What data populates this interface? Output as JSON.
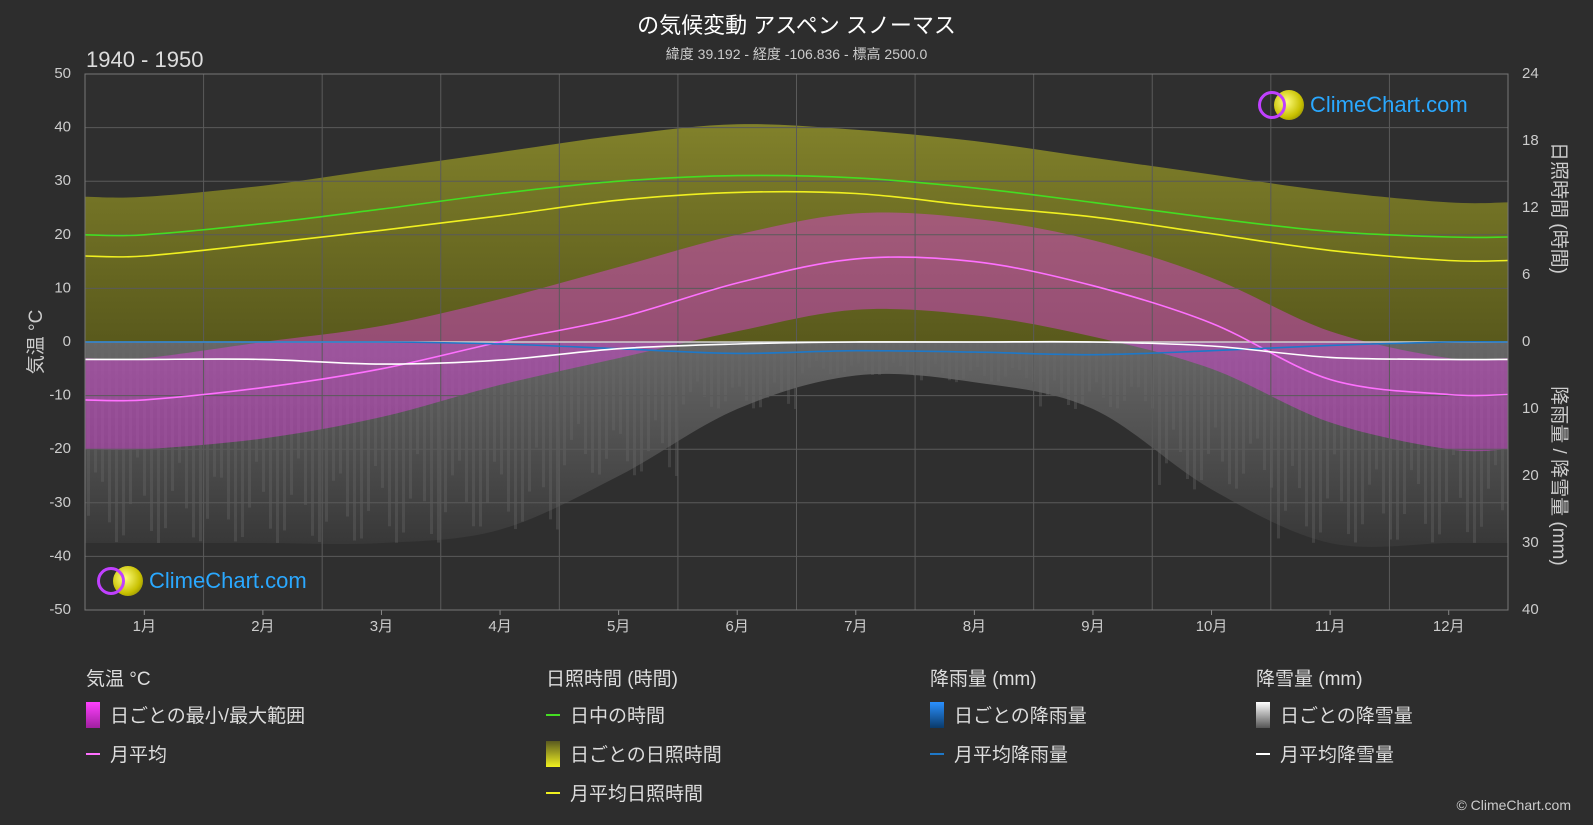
{
  "title": "の気候変動 アスペン スノーマス",
  "subtitle": "緯度 39.192 - 経度 -106.836 - 標高 2500.0",
  "period": "1940 - 1950",
  "logo_text": "ClimeChart.com",
  "copyright": "© ClimeChart.com",
  "colors": {
    "background": "#2d2d2d",
    "daylight": "#44dd22",
    "sunshine_line": "#f0f020",
    "sunshine_fill": "#8c8c1e",
    "temp_fill": "#e040e0",
    "temp_line": "#ff70ff",
    "rain": "#1e78c8",
    "snow": "#ffffff",
    "grid": "#555555"
  },
  "legend": {
    "temperature": {
      "header": "気温 °C",
      "items": [
        "日ごとの最小/最大範囲",
        "月平均"
      ]
    },
    "sunshine": {
      "header": "日照時間 (時間)",
      "items": [
        "日中の時間",
        "日ごとの日照時間",
        "月平均日照時間"
      ]
    },
    "rain": {
      "header": "降雨量 (mm)",
      "items": [
        "日ごとの降雨量",
        "月平均降雨量"
      ]
    },
    "snow": {
      "header": "降雪量 (mm)",
      "items": [
        "日ごとの降雪量",
        "月平均降雪量"
      ]
    }
  },
  "chart_data": {
    "type": "line",
    "categories": [
      "1月",
      "2月",
      "3月",
      "4月",
      "5月",
      "6月",
      "7月",
      "8月",
      "9月",
      "10月",
      "11月",
      "12月"
    ],
    "y_left": {
      "label": "気温 °C",
      "ylim": [
        -50,
        50
      ],
      "ticks": [
        50,
        40,
        30,
        20,
        10,
        0,
        -10,
        -20,
        -30,
        -40,
        -50
      ]
    },
    "y_right_top": {
      "label": "日照時間 (時間)",
      "ylim": [
        0,
        24
      ],
      "ticks": [
        24,
        18,
        12,
        6,
        0
      ]
    },
    "y_right_bottom": {
      "label": "降雨量 / 降雪量 (mm)",
      "ylim": [
        0,
        40
      ],
      "ticks": [
        0,
        10,
        20,
        30,
        40
      ]
    },
    "grid": true,
    "series": [
      {
        "name": "日中の時間",
        "axis": "sunshine",
        "values": [
          9.6,
          10.6,
          11.9,
          13.3,
          14.4,
          14.9,
          14.7,
          13.8,
          12.5,
          11.1,
          9.9,
          9.4
        ]
      },
      {
        "name": "月平均日照時間",
        "axis": "sunshine",
        "values": [
          7.7,
          8.8,
          10.0,
          11.3,
          12.7,
          13.4,
          13.3,
          12.2,
          11.2,
          9.7,
          8.2,
          7.3
        ]
      },
      {
        "name": "月平均",
        "axis": "temperature",
        "values": [
          -10.8,
          -8.5,
          -5.0,
          0.0,
          4.5,
          11.0,
          15.5,
          15.0,
          10.5,
          3.5,
          -7.0,
          -9.8
        ]
      },
      {
        "name": "月平均降雨量",
        "axis": "precip",
        "values": [
          0.0,
          0.0,
          0.0,
          0.3,
          1.0,
          1.7,
          1.3,
          1.5,
          1.9,
          1.3,
          0.5,
          0.0
        ]
      },
      {
        "name": "月平均降雪量",
        "axis": "precip",
        "values": [
          2.6,
          2.6,
          3.3,
          2.7,
          1.0,
          0.3,
          0.0,
          0.0,
          0.0,
          0.6,
          2.3,
          2.6
        ]
      }
    ],
    "daily_sunshine_band": [
      13.0,
      14.0,
      15.5,
      17.0,
      18.5,
      19.5,
      19.0,
      18.0,
      16.5,
      15.0,
      13.5,
      12.5
    ],
    "daily_temp_range": {
      "max": [
        -3,
        0,
        3,
        8,
        14,
        20,
        24,
        23,
        19,
        12,
        2,
        -3
      ],
      "min": [
        -20,
        -18,
        -14,
        -8,
        -3,
        2,
        6,
        5,
        1,
        -5,
        -15,
        -20
      ]
    },
    "daily_snow_depth_range": [
      30,
      30,
      30,
      28,
      20,
      10,
      5,
      6,
      10,
      22,
      30,
      30
    ]
  }
}
